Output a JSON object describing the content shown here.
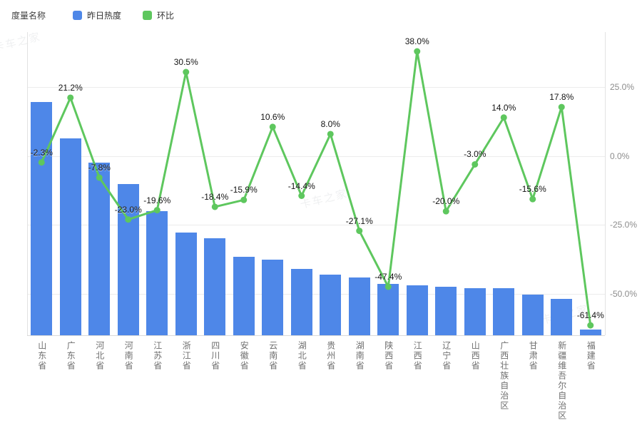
{
  "legend": {
    "measure_label": "度量名称"
  },
  "watermark": {
    "text": "卡车之家"
  },
  "chart_data": {
    "type": "combo-bar-line",
    "title": "",
    "xlabel": "",
    "ylabel": "",
    "grid": true,
    "legend_position": "top-left",
    "categories": [
      "山东省",
      "广东省",
      "河北省",
      "河南省",
      "江苏省",
      "浙江省",
      "四川省",
      "安徽省",
      "云南省",
      "湖北省",
      "贵州省",
      "湖南省",
      "陕西省",
      "江西省",
      "辽宁省",
      "山西省",
      "广西壮族自治区",
      "甘肃省",
      "新疆维吾尔自治区",
      "福建省"
    ],
    "series": [
      {
        "name": "昨日热度",
        "type": "bar",
        "axis": "left",
        "color": "#4e87e8",
        "values": [
          77,
          65,
          57,
          50,
          41,
          34,
          32,
          26,
          25,
          22,
          20,
          19,
          17,
          16.5,
          16,
          15.5,
          15.5,
          13.5,
          12,
          2
        ],
        "note": "left axis is unlabeled in the screenshot; bar values are relative units estimated from bar heights (max bar = 77 of 100 plot height)"
      },
      {
        "name": "环比",
        "type": "line",
        "axis": "right",
        "color": "#5ec75e",
        "values": [
          -2.3,
          21.2,
          -7.8,
          -23.0,
          -19.6,
          30.5,
          -18.4,
          -15.9,
          10.6,
          -14.4,
          8.0,
          -27.1,
          -47.4,
          38.0,
          -20.0,
          -3.0,
          14.0,
          -15.6,
          17.8,
          -61.4
        ],
        "labels": [
          "-2.3%",
          "21.2%",
          "-7.8%",
          "-23.0%",
          "-19.6%",
          "30.5%",
          "-18.4%",
          "-15.9%",
          "10.6%",
          "-14.4%",
          "8.0%",
          "-27.1%",
          "-47.4%",
          "38.0%",
          "-20.0%",
          "-3.0%",
          "14.0%",
          "-15.6%",
          "17.8%",
          "-61.4%"
        ]
      }
    ],
    "right_axis": {
      "ticks": [
        25.0,
        0.0,
        -25.0,
        -50.0
      ],
      "tick_labels": [
        "25.0%",
        "0.0%",
        "-25.0%",
        "-50.0%"
      ],
      "range": [
        -65,
        45
      ]
    },
    "left_axis": {
      "range": [
        0,
        100
      ],
      "tick_labels": []
    }
  }
}
